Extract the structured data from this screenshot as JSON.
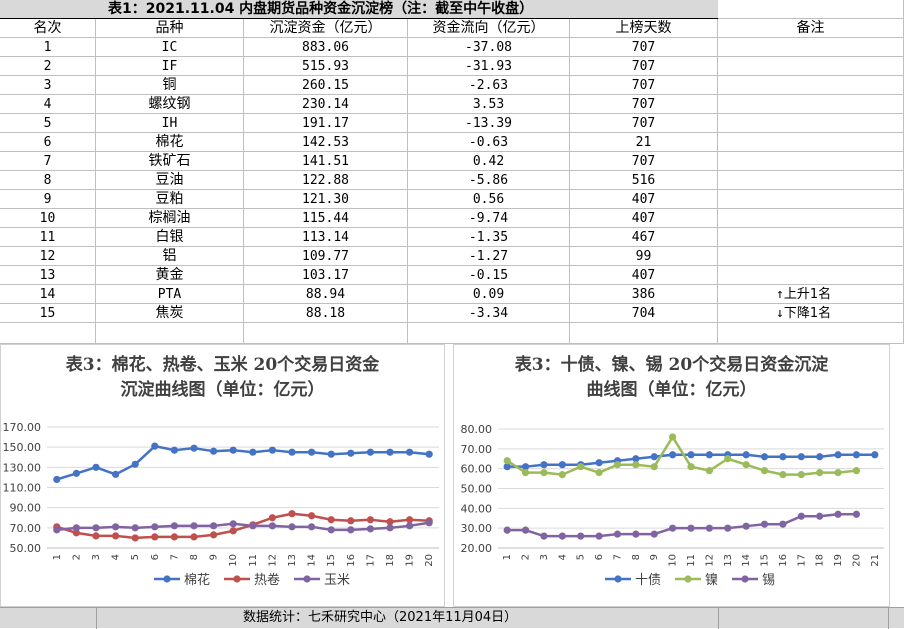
{
  "table": {
    "title": "表1：2021.11.04 内盘期货品种资金沉淀榜（注：截至中午收盘）",
    "headers": [
      "名次",
      "品种",
      "沉淀资金（亿元）",
      "资金流向（亿元）",
      "上榜天数",
      "备注"
    ],
    "rows": [
      [
        "1",
        "IC",
        "883.06",
        "-37.08",
        "707",
        ""
      ],
      [
        "2",
        "IF",
        "515.93",
        "-31.93",
        "707",
        ""
      ],
      [
        "3",
        "铜",
        "260.15",
        "-2.63",
        "707",
        ""
      ],
      [
        "4",
        "螺纹钢",
        "230.14",
        "3.53",
        "707",
        ""
      ],
      [
        "5",
        "IH",
        "191.17",
        "-13.39",
        "707",
        ""
      ],
      [
        "6",
        "棉花",
        "142.53",
        "-0.63",
        "21",
        ""
      ],
      [
        "7",
        "铁矿石",
        "141.51",
        "0.42",
        "707",
        ""
      ],
      [
        "8",
        "豆油",
        "122.88",
        "-5.86",
        "516",
        ""
      ],
      [
        "9",
        "豆粕",
        "121.30",
        "0.56",
        "407",
        ""
      ],
      [
        "10",
        "棕榈油",
        "115.44",
        "-9.74",
        "407",
        ""
      ],
      [
        "11",
        "白银",
        "113.14",
        "-1.35",
        "467",
        ""
      ],
      [
        "12",
        "铝",
        "109.77",
        "-1.27",
        "99",
        ""
      ],
      [
        "13",
        "黄金",
        "103.17",
        "-0.15",
        "407",
        ""
      ],
      [
        "14",
        "PTA",
        "88.94",
        "0.09",
        "386",
        "上升1名"
      ],
      [
        "15",
        "焦炭",
        "88.18",
        "-3.34",
        "704",
        "下降1名"
      ]
    ],
    "up_arrow": "↑",
    "down_arrow": "↓"
  },
  "chart_data": [
    {
      "type": "line",
      "title": "表3：棉花、热卷、玉米 20个交易日资金沉淀曲线图（单位：亿元）",
      "title_lines": [
        "表3：棉花、热卷、玉米 20个交易日资金",
        "沉淀曲线图（单位：亿元）"
      ],
      "categories": [
        "1",
        "2",
        "3",
        "4",
        "5",
        "6",
        "7",
        "8",
        "9",
        "10",
        "11",
        "12",
        "13",
        "14",
        "15",
        "16",
        "17",
        "18",
        "19",
        "20"
      ],
      "ylim": [
        50,
        170
      ],
      "yticks": [
        "50.00",
        "70.00",
        "90.00",
        "110.00",
        "130.00",
        "150.00",
        "170.00"
      ],
      "grid": true,
      "legend": "bottom",
      "series": [
        {
          "name": "棉花",
          "color": "#4472c4",
          "values": [
            118,
            124,
            130,
            123,
            133,
            151,
            147,
            149,
            146,
            147,
            145,
            147,
            145,
            145,
            143,
            144,
            145,
            145,
            145,
            143
          ]
        },
        {
          "name": "热卷",
          "color": "#c0504d",
          "values": [
            71,
            65,
            62,
            62,
            60,
            61,
            61,
            61,
            63,
            67,
            73,
            80,
            84,
            82,
            78,
            77,
            78,
            76,
            78,
            77
          ]
        },
        {
          "name": "玉米",
          "color": "#8064a2",
          "values": [
            68,
            70,
            70,
            71,
            70,
            71,
            72,
            72,
            72,
            74,
            72,
            72,
            71,
            71,
            68,
            68,
            69,
            70,
            72,
            75
          ]
        }
      ]
    },
    {
      "type": "line",
      "title": "表3：十债、镍、锡 20个交易日资金沉淀曲线图（单位：亿元）",
      "title_lines": [
        "表3：十债、镍、锡 20个交易日资金沉淀",
        "曲线图（单位：亿元）"
      ],
      "categories": [
        "1",
        "2",
        "3",
        "4",
        "5",
        "6",
        "7",
        "8",
        "9",
        "10",
        "11",
        "12",
        "13",
        "14",
        "15",
        "16",
        "17",
        "18",
        "19",
        "20",
        "21"
      ],
      "ylim": [
        20,
        80
      ],
      "yticks": [
        "20.00",
        "30.00",
        "40.00",
        "50.00",
        "60.00",
        "70.00",
        "80.00"
      ],
      "grid": true,
      "legend": "bottom",
      "series": [
        {
          "name": "十债",
          "color": "#4472c4",
          "values": [
            61,
            61,
            62,
            62,
            62,
            63,
            64,
            65,
            66,
            67,
            67,
            67,
            67,
            67,
            66,
            66,
            66,
            66,
            67,
            67,
            67
          ]
        },
        {
          "name": "镍",
          "color": "#9bbb59",
          "values": [
            64,
            58,
            58,
            57,
            61,
            58,
            62,
            62,
            61,
            76,
            61,
            59,
            65,
            62,
            59,
            57,
            57,
            58,
            58,
            59,
            null
          ]
        },
        {
          "name": "锡",
          "color": "#8064a2",
          "values": [
            29,
            29,
            26,
            26,
            26,
            26,
            27,
            27,
            27,
            30,
            30,
            30,
            30,
            31,
            32,
            32,
            36,
            36,
            37,
            37,
            null
          ]
        }
      ]
    }
  ],
  "footer": {
    "text": "数据统计：七禾研究中心（2021年11月04日）"
  }
}
